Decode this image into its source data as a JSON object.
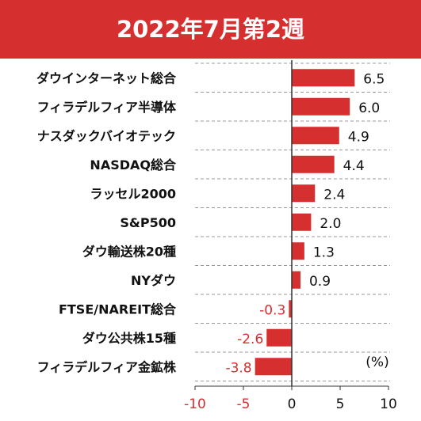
{
  "header": {
    "title": "2022年7月第2週"
  },
  "chart_data": {
    "type": "bar",
    "orientation": "horizontal",
    "title": "2022年7月第2週",
    "unit_label": "(%)",
    "categories": [
      "ダウインターネット総合",
      "フィラデルフィア半導体",
      "ナスダックバイオテック",
      "NASDAQ総合",
      "ラッセル2000",
      "S&P500",
      "ダウ輸送株20種",
      "NYダウ",
      "FTSE/NAREIT総合",
      "ダウ公共株15種",
      "フィラデルフィア金鉱株"
    ],
    "values": [
      6.5,
      6.0,
      4.9,
      4.4,
      2.4,
      2.0,
      1.3,
      0.9,
      -0.3,
      -2.6,
      -3.8
    ],
    "value_labels": [
      "6.5",
      "6.0",
      "4.9",
      "4.4",
      "2.4",
      "2.0",
      "1.3",
      "0.9",
      "-0.3",
      "-2.6",
      "-3.8"
    ],
    "xlim": [
      -10,
      10
    ],
    "xticks": [
      "-10",
      "-5",
      "0",
      "5",
      "10"
    ],
    "xtick_values": [
      -10,
      -5,
      0,
      5,
      10
    ],
    "grid": "dashed horizontal",
    "colors": {
      "bar": "#d62f2f",
      "negative_text": "#d62f2f",
      "positive_text": "#111111",
      "header": "#d62f2f",
      "grid": "#999999"
    }
  }
}
